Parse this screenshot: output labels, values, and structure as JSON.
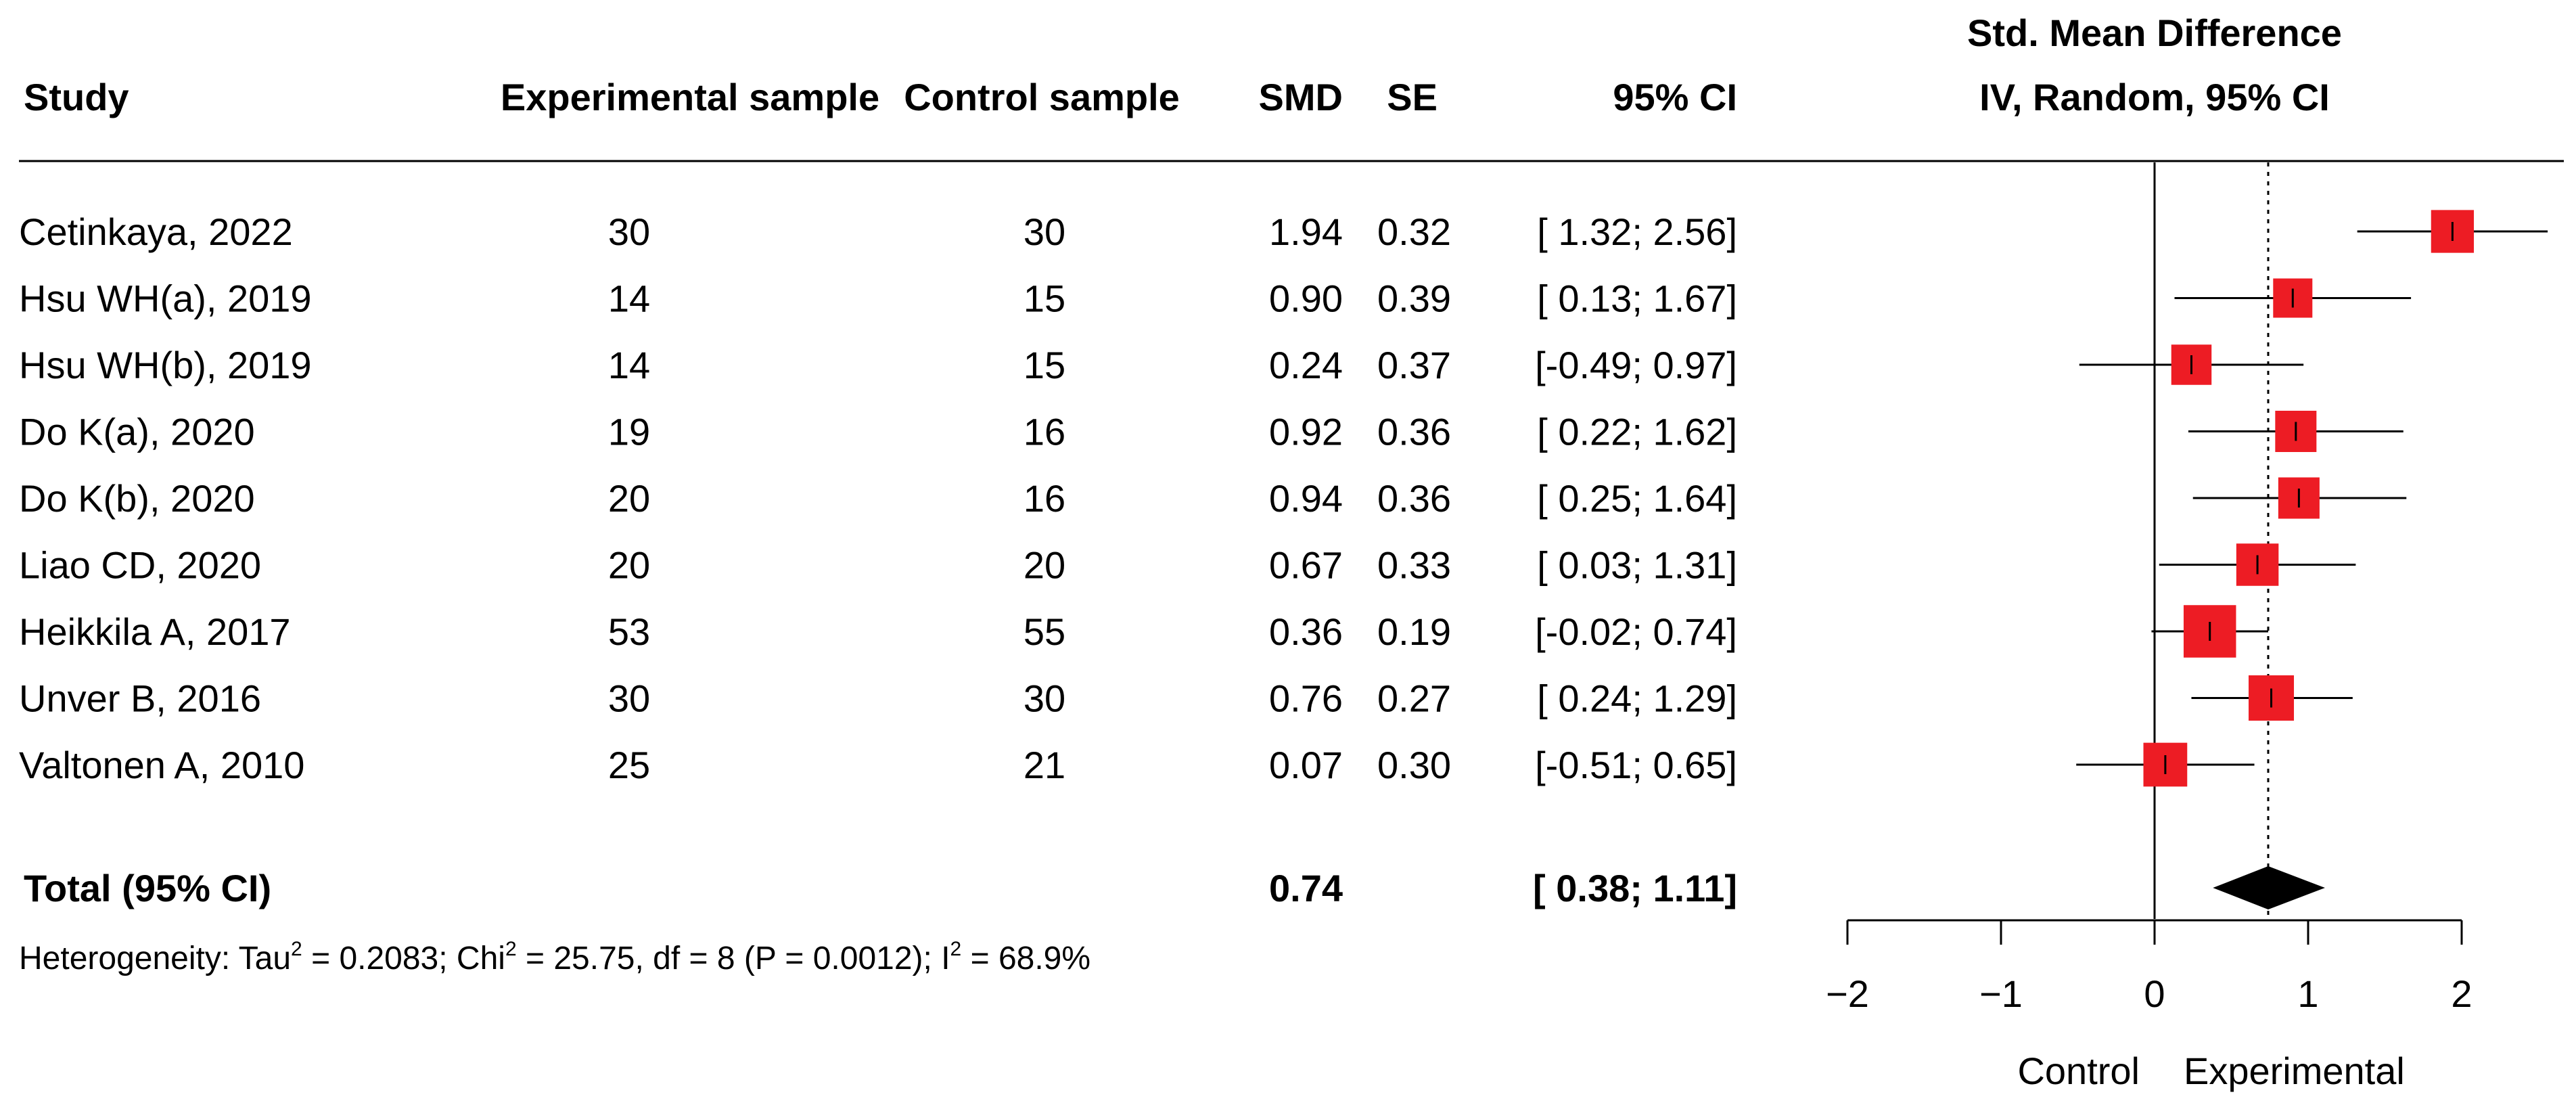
{
  "header": {
    "study": "Study",
    "exp_sample": "Experimental sample",
    "ctrl_sample": "Control sample",
    "smd": "SMD",
    "se": "SE",
    "ci": "95% CI",
    "plot_title_1": "Std. Mean Difference",
    "plot_title_2": "IV, Random, 95% CI"
  },
  "studies": [
    {
      "study": "Cetinkaya, 2022",
      "exp": "30",
      "ctrl": "30",
      "smd": "1.94",
      "se": "0.32",
      "ci": "[ 1.32; 2.56]"
    },
    {
      "study": "Hsu WH(a), 2019",
      "exp": "14",
      "ctrl": "15",
      "smd": "0.90",
      "se": "0.39",
      "ci": "[ 0.13; 1.67]"
    },
    {
      "study": "Hsu WH(b), 2019",
      "exp": "14",
      "ctrl": "15",
      "smd": "0.24",
      "se": "0.37",
      "ci": "[-0.49; 0.97]"
    },
    {
      "study": "Do K(a), 2020",
      "exp": "19",
      "ctrl": "16",
      "smd": "0.92",
      "se": "0.36",
      "ci": "[ 0.22; 1.62]"
    },
    {
      "study": "Do K(b), 2020",
      "exp": "20",
      "ctrl": "16",
      "smd": "0.94",
      "se": "0.36",
      "ci": "[ 0.25; 1.64]"
    },
    {
      "study": "Liao CD, 2020",
      "exp": "20",
      "ctrl": "20",
      "smd": "0.67",
      "se": "0.33",
      "ci": "[ 0.03; 1.31]"
    },
    {
      "study": "Heikkila A, 2017",
      "exp": "53",
      "ctrl": "55",
      "smd": "0.36",
      "se": "0.19",
      "ci": "[-0.02; 0.74]"
    },
    {
      "study": "Unver B, 2016",
      "exp": "30",
      "ctrl": "30",
      "smd": "0.76",
      "se": "0.27",
      "ci": "[ 0.24; 1.29]"
    },
    {
      "study": "Valtonen A, 2010",
      "exp": "25",
      "ctrl": "21",
      "smd": "0.07",
      "se": "0.30",
      "ci": "[-0.51; 0.65]"
    }
  ],
  "total": {
    "label": "Total (95% CI)",
    "smd": "0.74",
    "ci": "[ 0.38; 1.11]"
  },
  "heterogeneity": {
    "p1": "Heterogeneity: Tau",
    "sup1": "2",
    "p2": " = 0.2083; Chi",
    "sup2": "2",
    "p3": " = 25.75, df = 8 (P = 0.0012); I",
    "sup3": "2",
    "p4": " = 68.9%"
  },
  "axis": {
    "left_label": "Control",
    "right_label": "Experimental"
  },
  "chart_data": {
    "type": "forest",
    "categories": [
      "Cetinkaya, 2022",
      "Hsu WH(a), 2019",
      "Hsu WH(b), 2019",
      "Do K(a), 2020",
      "Do K(b), 2020",
      "Liao CD, 2020",
      "Heikkila A, 2017",
      "Unver B, 2016",
      "Valtonen A, 2010"
    ],
    "estimates": [
      1.94,
      0.9,
      0.24,
      0.92,
      0.94,
      0.67,
      0.36,
      0.76,
      0.07
    ],
    "lower": [
      1.32,
      0.13,
      -0.49,
      0.22,
      0.25,
      0.03,
      -0.02,
      0.24,
      -0.51
    ],
    "upper": [
      2.56,
      1.67,
      0.97,
      1.62,
      1.64,
      1.31,
      0.74,
      1.29,
      0.65
    ],
    "weights_relative": [
      0.31,
      0.24,
      0.26,
      0.28,
      0.28,
      0.3,
      0.5,
      0.36,
      0.33
    ],
    "pooled": {
      "estimate": 0.74,
      "lower": 0.38,
      "upper": 1.11
    },
    "xlim": [
      -2,
      2
    ],
    "xticks": [
      -2,
      -1,
      0,
      1,
      2
    ],
    "marker_color": "#ed1c24",
    "diamond_color": "#000000"
  }
}
